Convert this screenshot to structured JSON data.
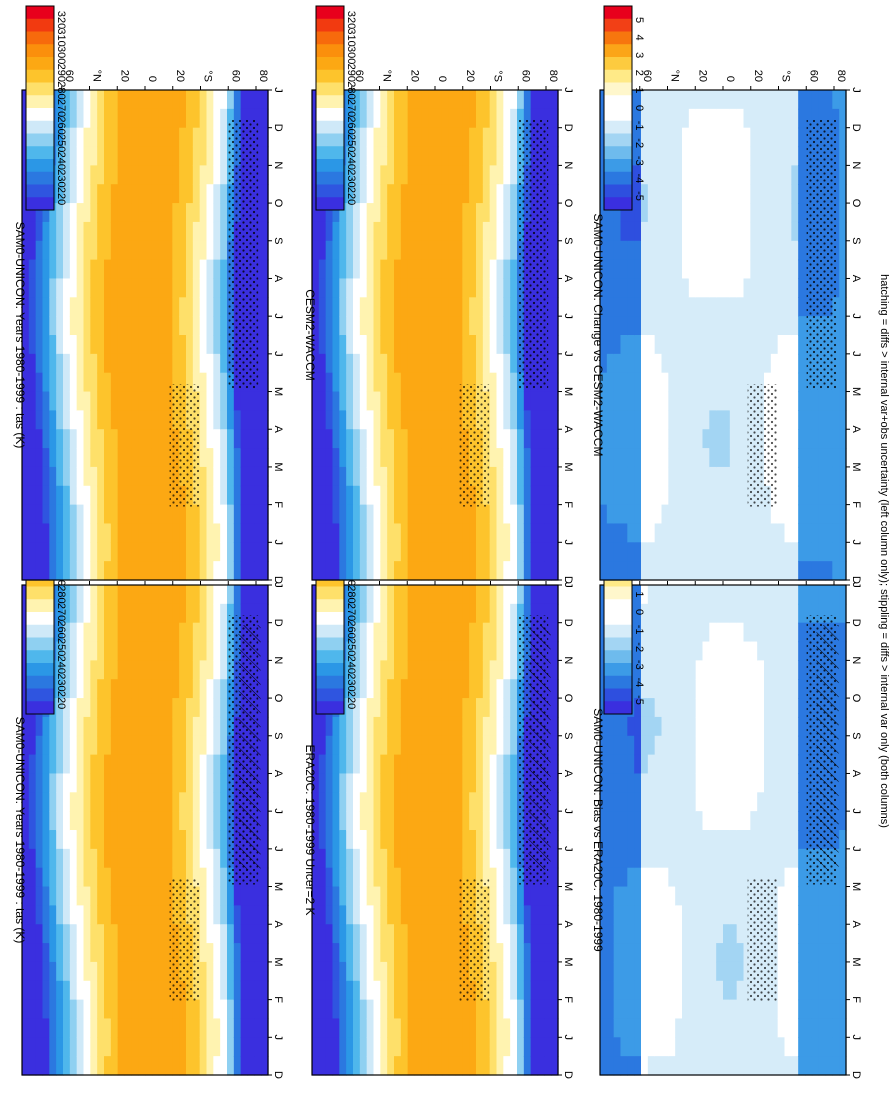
{
  "footnote": "hatching = diffs > internal var+obs uncertainty (left column only); stippling = diffs > internal var only (both columns)",
  "chart_data": [
    {
      "type": "heatmap",
      "title": "SAM0-UNICON: Years 1980-1999 : tas (K)",
      "x_categories": [
        "D",
        "J",
        "F",
        "M",
        "A",
        "M",
        "J",
        "J",
        "A",
        "S",
        "O",
        "N",
        "D",
        "J"
      ],
      "y_tick_labels": [
        "80",
        "60",
        "°N",
        "20",
        "0",
        "20",
        "°S",
        "60",
        "80"
      ],
      "colorbar": [
        "320",
        "310",
        "300",
        "290",
        "280",
        "270",
        "260",
        "250",
        "240",
        "230",
        "220"
      ],
      "palette": "temperature",
      "hatching": true,
      "stippling": true
    },
    {
      "type": "heatmap",
      "title": "ERA20C: 1980-1999 Uncer=2 K",
      "x_categories": [
        "D",
        "J",
        "F",
        "M",
        "A",
        "M",
        "J",
        "J",
        "A",
        "S",
        "O",
        "N",
        "D",
        "J"
      ],
      "y_tick_labels": [
        "80",
        "60",
        "°N",
        "20",
        "0",
        "20",
        "°S",
        "60",
        "80"
      ],
      "colorbar": [
        "320",
        "310",
        "300",
        "290",
        "280",
        "270",
        "260",
        "250",
        "240",
        "230",
        "220"
      ],
      "palette": "temperature",
      "hatching": true,
      "stippling": true
    },
    {
      "type": "heatmap",
      "title": "SAM0-UNICON: Bias vs ERA20C: 1980-1999",
      "x_categories": [
        "D",
        "J",
        "F",
        "M",
        "A",
        "M",
        "J",
        "J",
        "A",
        "S",
        "O",
        "N",
        "D",
        "J"
      ],
      "y_tick_labels": [
        "80",
        "60",
        "°N",
        "20",
        "0",
        "20",
        "°S",
        "60",
        "80"
      ],
      "colorbar": [
        "5",
        "4",
        "3",
        "2",
        "1",
        "0",
        "-1",
        "-2",
        "-3",
        "-4",
        "-5"
      ],
      "palette": "difference",
      "hatching": true,
      "stippling": true
    },
    {
      "type": "heatmap",
      "title": "SAM0-UNICON: Years 1980-1999 : tas (K)",
      "x_categories": [
        "D",
        "J",
        "F",
        "M",
        "A",
        "M",
        "J",
        "J",
        "A",
        "S",
        "O",
        "N",
        "D",
        "J"
      ],
      "y_tick_labels": [
        "80",
        "60",
        "°N",
        "20",
        "0",
        "20",
        "°S",
        "60",
        "80"
      ],
      "colorbar": [
        "320",
        "310",
        "300",
        "290",
        "280",
        "270",
        "260",
        "250",
        "240",
        "230",
        "220"
      ],
      "palette": "temperature",
      "hatching": false,
      "stippling": true
    },
    {
      "type": "heatmap",
      "title": "CESM2-WACCM",
      "x_categories": [
        "D",
        "J",
        "F",
        "M",
        "A",
        "M",
        "J",
        "J",
        "A",
        "S",
        "O",
        "N",
        "D",
        "J"
      ],
      "y_tick_labels": [
        "80",
        "60",
        "°N",
        "20",
        "0",
        "20",
        "°S",
        "60",
        "80"
      ],
      "colorbar": [
        "320",
        "310",
        "300",
        "290",
        "280",
        "270",
        "260",
        "250",
        "240",
        "230",
        "220"
      ],
      "palette": "temperature",
      "hatching": false,
      "stippling": true
    },
    {
      "type": "heatmap",
      "title": "SAM0-UNICON: Change vs CESM2-WACCM",
      "x_categories": [
        "D",
        "J",
        "F",
        "M",
        "A",
        "M",
        "J",
        "J",
        "A",
        "S",
        "O",
        "N",
        "D",
        "J"
      ],
      "y_tick_labels": [
        "80",
        "60",
        "°N",
        "20",
        "0",
        "20",
        "°S",
        "60",
        "80"
      ],
      "colorbar": [
        "5",
        "4",
        "3",
        "2",
        "1",
        "0",
        "-1",
        "-2",
        "-3",
        "-4",
        "-5"
      ],
      "palette": "difference",
      "hatching": false,
      "stippling": true
    }
  ],
  "colors": {
    "temperature": [
      "#e8001c",
      "#f23a10",
      "#f76a0c",
      "#fb8f0c",
      "#fca813",
      "#fdc42c",
      "#fee06a",
      "#fff3b0",
      "#ffffff",
      "#cfe9f8",
      "#8fd0f1",
      "#4fb7ec",
      "#2b97e6",
      "#2b78e0",
      "#2f55e0",
      "#3a2fdf"
    ],
    "difference": [
      "#e8001c",
      "#f24016",
      "#f7760e",
      "#fba518",
      "#fdcb3f",
      "#ffea87",
      "#fff7cc",
      "#ffffff",
      "#ffffff",
      "#d6ecf9",
      "#a3d5f3",
      "#6ebbed",
      "#3c9be7",
      "#2b78e0",
      "#2e4fdf",
      "#3a2fdf"
    ]
  }
}
